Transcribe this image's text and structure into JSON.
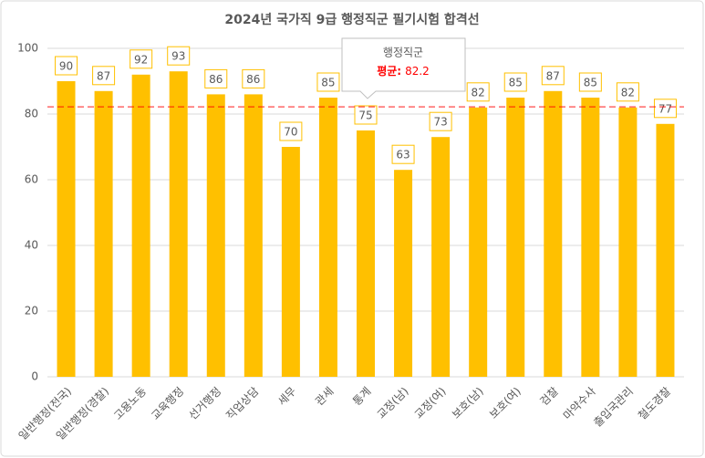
{
  "chart_data": {
    "type": "bar",
    "title": "2024년 국가직 9급 행정직군 필기시험 합격선",
    "categories": [
      "일반행정(전국)",
      "일반행정(경찰)",
      "고용노동",
      "교육행정",
      "선거행정",
      "직업상담",
      "세무",
      "관세",
      "통계",
      "교정(남)",
      "교정(여)",
      "보호(남)",
      "보호(여)",
      "검찰",
      "마약수사",
      "출입국관리",
      "철도경찰"
    ],
    "values": [
      90,
      87,
      92,
      93,
      86,
      86,
      70,
      85,
      75,
      63,
      73,
      82,
      85,
      87,
      85,
      82,
      77
    ],
    "color": "#ffc000",
    "ylim": [
      0,
      100
    ],
    "yticks": [
      0,
      20,
      40,
      60,
      80,
      100
    ],
    "grid": true,
    "reference": {
      "title": "행정직군",
      "label": "평균:",
      "value": 82.2,
      "color": "#ff0000"
    }
  }
}
